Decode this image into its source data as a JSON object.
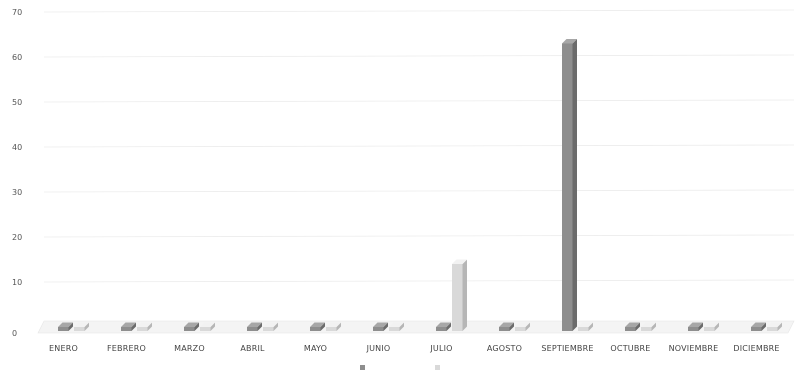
{
  "chart_data": {
    "type": "bar",
    "title": "",
    "xlabel": "",
    "ylabel": "",
    "ylim": [
      0,
      70
    ],
    "yticks": [
      0,
      10,
      20,
      30,
      40,
      50,
      60,
      70
    ],
    "grid": true,
    "legend_position": "bottom",
    "categories": [
      "ENERO",
      "FEBRERO",
      "MARZO",
      "ABRIL",
      "MAYO",
      "JUNIO",
      "JULIO",
      "AGOSTO",
      "SEPTIEMBRE",
      "OCTUBRE",
      "NOVIEMBRE",
      "DICIEMBRE"
    ],
    "category_labels": [
      "ENERO",
      "FEBRERO",
      "MARZO",
      "ABRIL",
      "MAYO",
      "JUNIO",
      "JULIO",
      "AGOSTO",
      "SEPTIEMBRE",
      "OCTUBRE",
      "NOVIEMBRE",
      "DICIEMBRE"
    ],
    "series": [
      {
        "name": "",
        "color": "#8e8e8e",
        "values": [
          1,
          1,
          1,
          1,
          1,
          1,
          1,
          1,
          64,
          1,
          1,
          1
        ]
      },
      {
        "name": "",
        "color": "#d9d9d9",
        "values": [
          1,
          1,
          1,
          1,
          1,
          1,
          15,
          1,
          1,
          1,
          1,
          1
        ]
      }
    ],
    "legend_labels": [
      "",
      ""
    ]
  }
}
